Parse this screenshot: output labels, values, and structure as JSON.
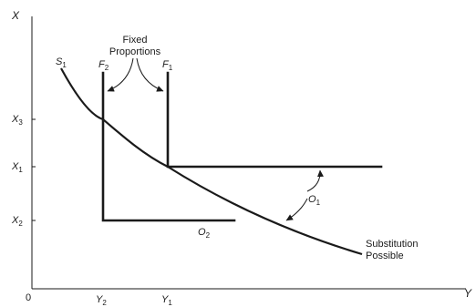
{
  "axes": {
    "y_axis_label": "X",
    "x_axis_label": "Y",
    "origin_label": "0"
  },
  "ticks": {
    "x3": {
      "base": "X",
      "sub": "3"
    },
    "x1": {
      "base": "X",
      "sub": "1"
    },
    "x2": {
      "base": "X",
      "sub": "2"
    },
    "y2": {
      "base": "Y",
      "sub": "2"
    },
    "y1": {
      "base": "Y",
      "sub": "1"
    }
  },
  "curves": {
    "s1": {
      "base": "S",
      "sub": "1"
    },
    "f2": {
      "base": "F",
      "sub": "2"
    },
    "f1": {
      "base": "F",
      "sub": "1"
    },
    "o1": {
      "base": "O",
      "sub": "1"
    },
    "o2": {
      "base": "O",
      "sub": "2"
    }
  },
  "annotations": {
    "fixed_line1": "Fixed",
    "fixed_line2": "Proportions",
    "substitution_line1": "Substitution",
    "substitution_line2": "Possible"
  }
}
